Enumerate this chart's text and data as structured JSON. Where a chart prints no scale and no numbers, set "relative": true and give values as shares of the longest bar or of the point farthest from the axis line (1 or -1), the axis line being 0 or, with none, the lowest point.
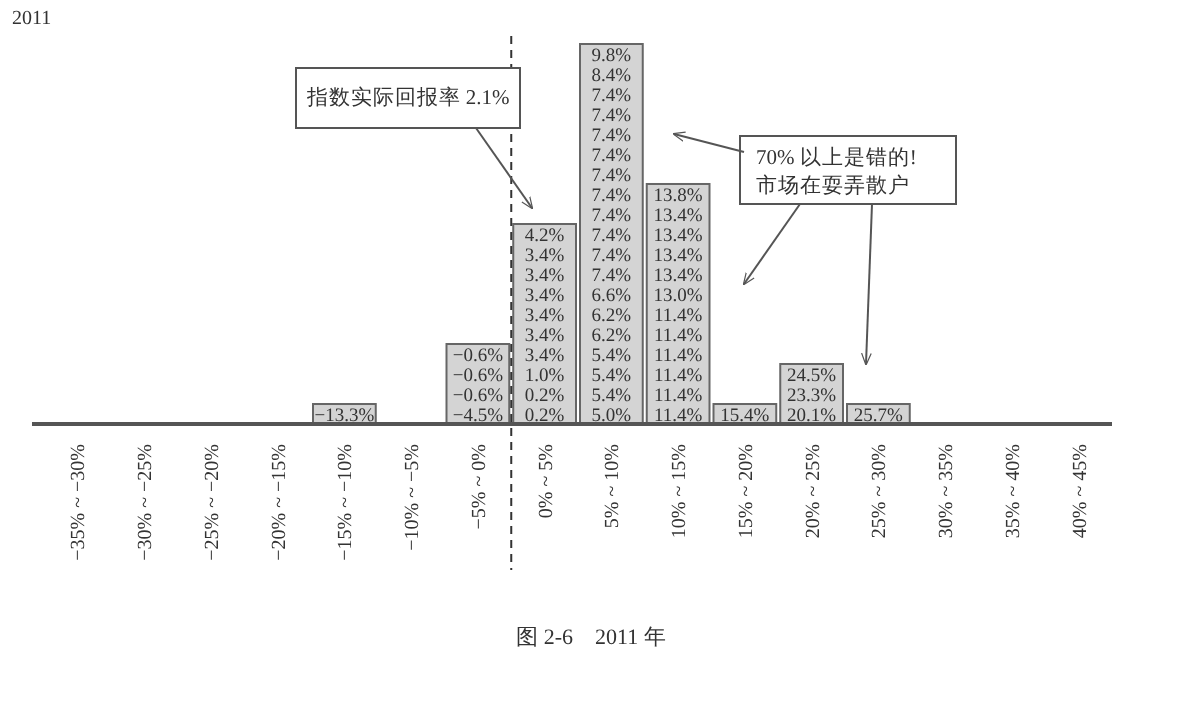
{
  "chart_data": {
    "type": "bar",
    "relative": true,
    "title": "2011",
    "categories": [
      "−35% ~ −30%",
      "−30% ~ −25%",
      "−25% ~ −20%",
      "−20% ~ −15%",
      "−15% ~ −10%",
      "−10% ~ −5%",
      "−5% ~ 0%",
      "0% ~ 5%",
      "5% ~ 10%",
      "10% ~ 15%",
      "15% ~ 20%",
      "20% ~ 25%",
      "25% ~ 30%",
      "30% ~ 35%",
      "35% ~ 40%",
      "40% ~ 45%"
    ],
    "color": "#d4d4d4",
    "values": [
      null,
      null,
      null,
      null,
      0.0526,
      null,
      0.2105,
      0.5263,
      1,
      0.6316,
      0.0526,
      0.1579,
      0.0526,
      null,
      null,
      null
    ],
    "annotations": [
      "指数实际回报率 2.1%",
      "70% 以上是错的!\n市场在耍弄散户",
      "图 2-6　2011 年",
      "−13.3%",
      "−4.5%",
      "−0.6%",
      "−0.6%",
      "−0.6%",
      "0.2%",
      "0.2%",
      "1.0%",
      "3.4%",
      "3.4%",
      "3.4%",
      "3.4%",
      "3.4%",
      "3.4%",
      "4.2%",
      "5.0%",
      "5.4%",
      "5.4%",
      "5.4%",
      "6.2%",
      "6.2%",
      "6.6%",
      "7.4%",
      "7.4%",
      "7.4%",
      "7.4%",
      "7.4%",
      "7.4%",
      "7.4%",
      "7.4%",
      "7.4%",
      "7.4%",
      "8.4%",
      "9.8%",
      "11.4%",
      "11.4%",
      "11.4%",
      "11.4%",
      "11.4%",
      "11.4%",
      "13.0%",
      "13.4%",
      "13.4%",
      "13.4%",
      "13.4%",
      "13.8%",
      "15.4%",
      "20.1%",
      "23.3%",
      "24.5%",
      "25.7%"
    ]
  }
}
